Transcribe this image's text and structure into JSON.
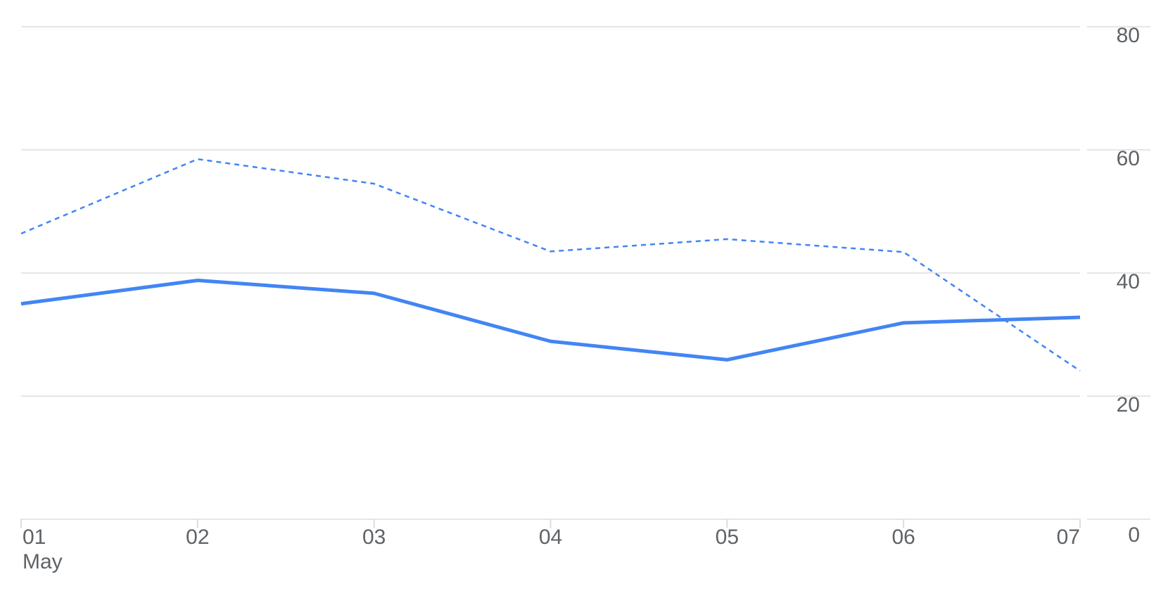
{
  "chart_data": {
    "type": "line",
    "categories": [
      "01",
      "02",
      "03",
      "04",
      "05",
      "06",
      "07"
    ],
    "x_sublabel": "May",
    "series": [
      {
        "values": [
          35,
          38.8,
          36.7,
          28.9,
          25.9,
          31.9,
          32.8
        ],
        "color": "#4285f4",
        "style": "solid"
      },
      {
        "values": [
          46.4,
          58.5,
          54.5,
          43.5,
          45.5,
          43.4,
          24.1
        ],
        "color": "#4285f4",
        "style": "dashed"
      }
    ],
    "y_ticks": [
      "0",
      "20",
      "40",
      "60",
      "80"
    ],
    "ylim": [
      0,
      80
    ],
    "y_axis_position": "right",
    "grid": true,
    "title": "",
    "xlabel": "",
    "ylabel": ""
  }
}
